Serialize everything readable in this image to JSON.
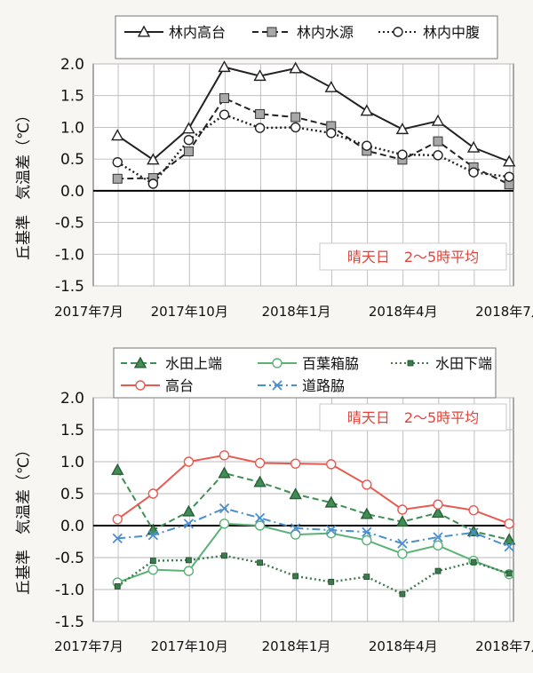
{
  "chart_data": [
    {
      "type": "line",
      "title": "",
      "ylabel": "丘基準　気温差（℃）",
      "ylim": [
        -1.5,
        2.0
      ],
      "yticks": [
        "2.0",
        "1.5",
        "1.0",
        "0.5",
        "0.0",
        "-0.5",
        "-1.0",
        "-1.5"
      ],
      "xtick_labels": [
        "2017年7月",
        "2017年10月",
        "2018年1月",
        "2018年4月",
        "2018年7月"
      ],
      "annotation": "晴天日　2～5時平均",
      "grid": true,
      "legend_position": "top",
      "x": [
        "2017-08",
        "2017-09",
        "2017-10",
        "2017-11",
        "2017-12",
        "2018-01",
        "2018-02",
        "2018-03",
        "2018-04",
        "2018-05",
        "2018-06",
        "2018-07"
      ],
      "series": [
        {
          "name": "林内高台",
          "color": "#222222",
          "dash": "solid",
          "marker": "triangle-open",
          "values": [
            0.87,
            0.49,
            0.98,
            1.95,
            1.81,
            1.93,
            1.63,
            1.26,
            0.97,
            1.1,
            0.68,
            0.46
          ]
        },
        {
          "name": "林内水源",
          "color": "#222222",
          "dash": "dashed",
          "marker": "square-filled",
          "values": [
            0.19,
            0.2,
            0.62,
            1.46,
            1.21,
            1.16,
            1.02,
            0.63,
            0.49,
            0.78,
            0.37,
            0.1
          ]
        },
        {
          "name": "林内中腹",
          "color": "#222222",
          "dash": "dotted",
          "marker": "circle-open",
          "values": [
            0.45,
            0.11,
            0.8,
            1.2,
            0.99,
            1.0,
            0.91,
            0.71,
            0.57,
            0.56,
            0.29,
            0.22
          ]
        }
      ]
    },
    {
      "type": "line",
      "title": "",
      "ylabel": "丘基準　気温差（℃）",
      "ylim": [
        -1.5,
        2.0
      ],
      "yticks": [
        "2.0",
        "1.5",
        "1.0",
        "0.5",
        "0.0",
        "-0.5",
        "-1.0",
        "-1.5"
      ],
      "xtick_labels": [
        "2017年7月",
        "2017年10月",
        "2018年1月",
        "2018年4月",
        "2018年7月"
      ],
      "annotation": "晴天日　2～5時平均",
      "grid": true,
      "legend_position": "top",
      "x": [
        "2017-08",
        "2017-09",
        "2017-10",
        "2017-11",
        "2017-12",
        "2018-01",
        "2018-02",
        "2018-03",
        "2018-04",
        "2018-05",
        "2018-06",
        "2018-07"
      ],
      "series": [
        {
          "name": "水田上端",
          "color": "#3f8f55",
          "dash": "dashed",
          "marker": "triangle-filled",
          "values": [
            0.87,
            -0.07,
            0.22,
            0.82,
            0.68,
            0.49,
            0.36,
            0.18,
            0.06,
            0.2,
            -0.09,
            -0.22
          ]
        },
        {
          "name": "百葉箱脇",
          "color": "#5ab276",
          "dash": "solid",
          "marker": "circle-open",
          "values": [
            -0.89,
            -0.69,
            -0.71,
            0.03,
            0.0,
            -0.14,
            -0.12,
            -0.23,
            -0.44,
            -0.31,
            -0.55,
            -0.76
          ]
        },
        {
          "name": "水田下端",
          "color": "#3b7a4a",
          "dash": "dotted",
          "marker": "square-small",
          "values": [
            -0.95,
            -0.55,
            -0.54,
            -0.47,
            -0.58,
            -0.79,
            -0.88,
            -0.8,
            -1.07,
            -0.71,
            -0.57,
            -0.75
          ]
        },
        {
          "name": "高台",
          "color": "#e85a50",
          "dash": "solid",
          "marker": "circle-open",
          "values": [
            0.1,
            0.5,
            1.0,
            1.1,
            0.98,
            0.97,
            0.96,
            0.64,
            0.25,
            0.33,
            0.24,
            0.03
          ]
        },
        {
          "name": "道路脇",
          "color": "#4a8fcf",
          "dash": "dashdot",
          "marker": "x",
          "values": [
            -0.2,
            -0.15,
            0.03,
            0.27,
            0.12,
            -0.04,
            -0.07,
            -0.1,
            -0.28,
            -0.18,
            -0.11,
            -0.33
          ]
        }
      ]
    }
  ]
}
